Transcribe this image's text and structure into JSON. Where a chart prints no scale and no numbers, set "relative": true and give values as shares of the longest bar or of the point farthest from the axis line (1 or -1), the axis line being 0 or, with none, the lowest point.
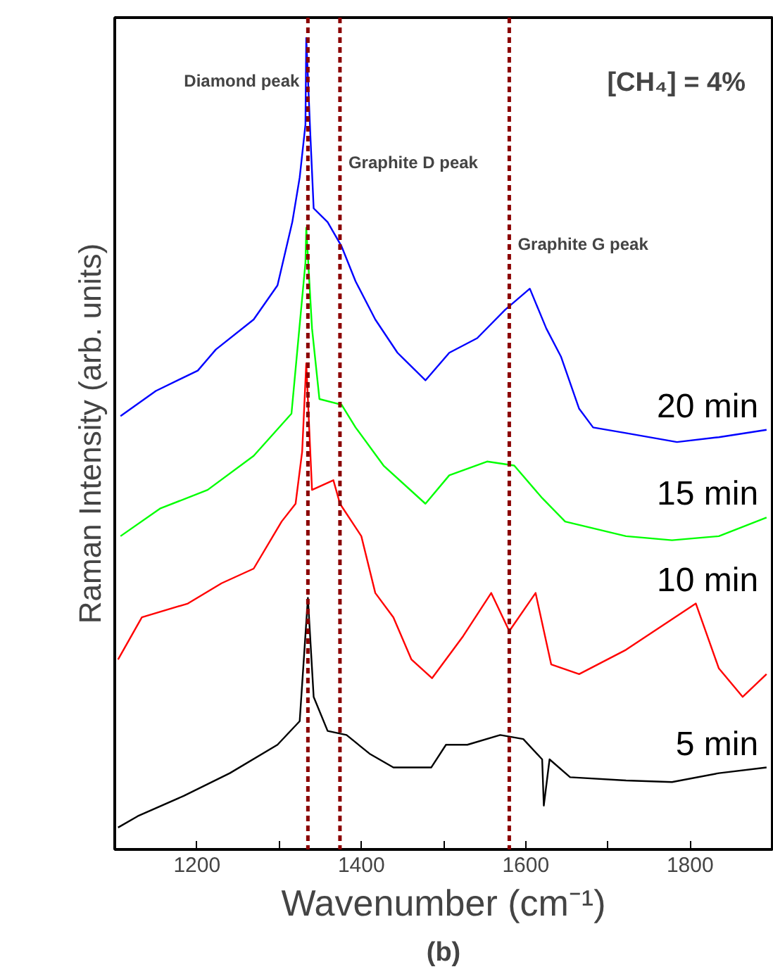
{
  "chart_data": {
    "type": "line",
    "relative": true,
    "xlabel": "Wavenumber (cm⁻¹)",
    "ylabel": "Raman Intensity (arb. units)",
    "annotations": [
      "[CH₄] = 4%",
      "(b)"
    ],
    "xlim": [
      1100,
      1900
    ],
    "xticks": [
      1200,
      {
        "value": 1300,
        "label": null
      },
      1400,
      {
        "value": 1500,
        "label": null
      },
      1600,
      {
        "value": 1700,
        "label": null
      },
      1800
    ],
    "grid": false,
    "legend": false,
    "marker": "none",
    "line_style": "solid",
    "ref_lines": [
      {
        "axis": "x",
        "value": 1335,
        "label": "Diamond peak",
        "color": "#8b0000",
        "line_style": "dashed"
      },
      {
        "axis": "x",
        "value": 1374,
        "label": "Graphite D peak",
        "color": "#8b0000",
        "line_style": "dashed"
      },
      {
        "axis": "x",
        "value": 1580,
        "label": "Graphite G peak",
        "color": "#8b0000",
        "line_style": "dashed"
      }
    ],
    "series": [
      {
        "name": "20 min",
        "color": "#0000ff",
        "x": [
          1107,
          1150,
          1201,
          1223,
          1269,
          1298,
          1316,
          1325,
          1332,
          1333,
          1338,
          1342,
          1359,
          1376,
          1393,
          1417,
          1444,
          1478,
          1507,
          1541,
          1575,
          1605,
          1625,
          1643,
          1665,
          1682,
          1722,
          1784,
          1835,
          1893
        ],
        "values": [
          0.534,
          0.565,
          0.59,
          0.616,
          0.653,
          0.695,
          0.773,
          0.828,
          0.893,
          1.0,
          0.88,
          0.79,
          0.773,
          0.743,
          0.7,
          0.653,
          0.612,
          0.578,
          0.612,
          0.63,
          0.665,
          0.691,
          0.642,
          0.607,
          0.543,
          0.52,
          0.513,
          0.502,
          0.508,
          0.517
        ]
      },
      {
        "name": "15 min",
        "color": "#00ff00",
        "x": [
          1107,
          1155,
          1213,
          1269,
          1315,
          1332,
          1333,
          1340,
          1349,
          1376,
          1393,
          1427,
          1478,
          1507,
          1553,
          1586,
          1620,
          1648,
          1722,
          1778,
          1835,
          1893
        ],
        "values": [
          0.386,
          0.42,
          0.443,
          0.485,
          0.537,
          0.723,
          0.766,
          0.642,
          0.555,
          0.548,
          0.52,
          0.473,
          0.426,
          0.461,
          0.478,
          0.473,
          0.433,
          0.404,
          0.386,
          0.381,
          0.386,
          0.409
        ]
      },
      {
        "name": "10 min",
        "color": "#ff0000",
        "x": [
          1104,
          1133,
          1189,
          1230,
          1269,
          1303,
          1320,
          1328,
          1333,
          1340,
          1366,
          1374,
          1400,
          1417,
          1439,
          1461,
          1486,
          1524,
          1558,
          1580,
          1612,
          1631,
          1665,
          1722,
          1807,
          1835,
          1864,
          1893
        ],
        "values": [
          0.234,
          0.286,
          0.303,
          0.328,
          0.346,
          0.404,
          0.426,
          0.49,
          0.599,
          0.443,
          0.455,
          0.426,
          0.386,
          0.316,
          0.286,
          0.234,
          0.211,
          0.263,
          0.316,
          0.269,
          0.316,
          0.228,
          0.216,
          0.246,
          0.303,
          0.223,
          0.188,
          0.216
        ]
      },
      {
        "name": "5 min",
        "color": "#000000",
        "x": [
          1104,
          1128,
          1184,
          1240,
          1298,
          1325,
          1335,
          1342,
          1359,
          1382,
          1410,
          1439,
          1485,
          1503,
          1529,
          1569,
          1597,
          1620,
          1622,
          1629,
          1654,
          1722,
          1778,
          1835,
          1893
        ],
        "values": [
          0.027,
          0.041,
          0.066,
          0.094,
          0.129,
          0.158,
          0.31,
          0.188,
          0.146,
          0.141,
          0.118,
          0.101,
          0.101,
          0.129,
          0.129,
          0.141,
          0.136,
          0.111,
          0.054,
          0.111,
          0.089,
          0.085,
          0.083,
          0.094,
          0.101
        ]
      }
    ]
  }
}
